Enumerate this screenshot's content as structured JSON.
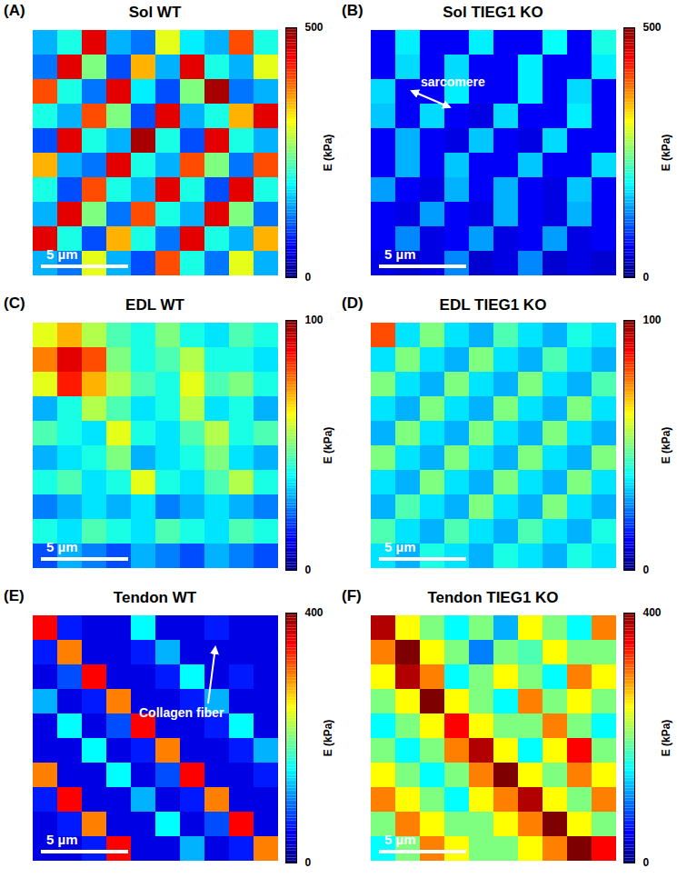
{
  "chart_data": [
    {
      "type": "heatmap",
      "panel": "(A)",
      "title": "Sol WT",
      "scale_bar": "5 µm",
      "colorbar": {
        "range": [
          0,
          500
        ],
        "ticks": [
          0,
          500
        ],
        "label": "E (kPa)"
      },
      "cells": [
        [
          150,
          200,
          450,
          150,
          120,
          300,
          180,
          150,
          400,
          200
        ],
        [
          120,
          450,
          250,
          100,
          350,
          150,
          450,
          200,
          150,
          300
        ],
        [
          400,
          200,
          120,
          450,
          180,
          100,
          250,
          480,
          120,
          150
        ],
        [
          200,
          150,
          400,
          250,
          100,
          450,
          150,
          200,
          350,
          450
        ],
        [
          100,
          450,
          200,
          150,
          480,
          200,
          100,
          450,
          200,
          150
        ],
        [
          350,
          150,
          120,
          450,
          200,
          150,
          400,
          250,
          120,
          400
        ],
        [
          200,
          100,
          400,
          200,
          150,
          450,
          200,
          100,
          450,
          200
        ],
        [
          150,
          450,
          250,
          120,
          400,
          200,
          150,
          450,
          250,
          120
        ],
        [
          450,
          200,
          100,
          350,
          200,
          120,
          450,
          200,
          150,
          350
        ],
        [
          150,
          120,
          300,
          150,
          100,
          400,
          200,
          120,
          300,
          150
        ]
      ]
    },
    {
      "type": "heatmap",
      "panel": "(B)",
      "title": "Sol TIEG1 KO",
      "scale_bar": "5 µm",
      "annotation": "sarcomere",
      "colorbar": {
        "range": [
          0,
          500
        ],
        "ticks": [
          0,
          500
        ],
        "label": "E (kPa)"
      },
      "cells": [
        [
          60,
          180,
          60,
          60,
          180,
          60,
          60,
          190,
          60,
          200
        ],
        [
          60,
          170,
          60,
          170,
          60,
          60,
          180,
          60,
          60,
          180
        ],
        [
          170,
          60,
          60,
          180,
          60,
          60,
          180,
          60,
          170,
          60
        ],
        [
          160,
          60,
          170,
          60,
          50,
          170,
          60,
          60,
          180,
          60
        ],
        [
          60,
          150,
          60,
          50,
          160,
          60,
          50,
          170,
          60,
          60
        ],
        [
          60,
          150,
          60,
          160,
          60,
          60,
          160,
          60,
          60,
          170
        ],
        [
          140,
          60,
          50,
          150,
          60,
          150,
          60,
          50,
          160,
          60
        ],
        [
          60,
          50,
          140,
          60,
          50,
          150,
          60,
          50,
          150,
          60
        ],
        [
          60,
          130,
          50,
          60,
          140,
          50,
          60,
          140,
          50,
          60
        ],
        [
          50,
          40,
          50,
          130,
          40,
          50,
          130,
          40,
          50,
          40
        ]
      ]
    },
    {
      "type": "heatmap",
      "panel": "(C)",
      "title": "EDL WT",
      "scale_bar": "5 µm",
      "colorbar": {
        "range": [
          0,
          100
        ],
        "ticks": [
          0,
          100
        ],
        "label": "E (kPa)"
      },
      "cells": [
        [
          60,
          70,
          55,
          45,
          40,
          50,
          40,
          35,
          45,
          40
        ],
        [
          75,
          90,
          80,
          50,
          40,
          45,
          55,
          40,
          40,
          35
        ],
        [
          60,
          85,
          70,
          55,
          45,
          40,
          60,
          45,
          50,
          40
        ],
        [
          30,
          40,
          55,
          45,
          35,
          40,
          55,
          35,
          40,
          30
        ],
        [
          45,
          40,
          35,
          60,
          40,
          35,
          45,
          55,
          40,
          45
        ],
        [
          30,
          35,
          40,
          50,
          30,
          35,
          40,
          50,
          35,
          30
        ],
        [
          40,
          45,
          35,
          40,
          60,
          40,
          35,
          45,
          55,
          40
        ],
        [
          25,
          30,
          35,
          30,
          35,
          25,
          30,
          35,
          30,
          25
        ],
        [
          40,
          35,
          45,
          40,
          35,
          45,
          40,
          35,
          45,
          40
        ],
        [
          20,
          30,
          25,
          20,
          30,
          25,
          20,
          30,
          25,
          20
        ]
      ]
    },
    {
      "type": "heatmap",
      "panel": "(D)",
      "title": "EDL TIEG1 KO",
      "scale_bar": "5 µm",
      "colorbar": {
        "range": [
          0,
          100
        ],
        "ticks": [
          0,
          100
        ],
        "label": "E (kPa)"
      },
      "cells": [
        [
          80,
          35,
          50,
          35,
          30,
          45,
          35,
          30,
          40,
          35
        ],
        [
          35,
          50,
          35,
          30,
          50,
          35,
          30,
          45,
          35,
          30
        ],
        [
          50,
          35,
          30,
          50,
          35,
          30,
          50,
          35,
          30,
          45
        ],
        [
          35,
          30,
          50,
          35,
          30,
          50,
          35,
          30,
          50,
          35
        ],
        [
          30,
          50,
          35,
          30,
          50,
          35,
          30,
          50,
          35,
          30
        ],
        [
          50,
          35,
          30,
          50,
          35,
          30,
          50,
          35,
          30,
          50
        ],
        [
          35,
          30,
          50,
          35,
          30,
          50,
          35,
          30,
          50,
          35
        ],
        [
          30,
          45,
          35,
          30,
          50,
          35,
          30,
          50,
          35,
          30
        ],
        [
          45,
          35,
          30,
          45,
          35,
          30,
          45,
          35,
          30,
          40
        ],
        [
          35,
          30,
          40,
          35,
          30,
          40,
          35,
          30,
          40,
          35
        ]
      ]
    },
    {
      "type": "heatmap",
      "panel": "(E)",
      "title": "Tendon WT",
      "scale_bar": "5 µm",
      "annotation": "Collagen fiber",
      "colorbar": {
        "range": [
          0,
          400
        ],
        "ticks": [
          0,
          400
        ],
        "label": "E (kPa)"
      },
      "cells": [
        [
          350,
          60,
          40,
          40,
          150,
          40,
          40,
          60,
          40,
          40
        ],
        [
          60,
          300,
          40,
          40,
          60,
          120,
          40,
          40,
          40,
          40
        ],
        [
          40,
          80,
          350,
          40,
          40,
          60,
          150,
          40,
          60,
          40
        ],
        [
          120,
          40,
          60,
          300,
          40,
          40,
          60,
          120,
          40,
          40
        ],
        [
          40,
          150,
          40,
          80,
          350,
          40,
          40,
          60,
          150,
          40
        ],
        [
          40,
          40,
          150,
          40,
          60,
          300,
          40,
          40,
          60,
          120
        ],
        [
          300,
          40,
          40,
          150,
          40,
          80,
          350,
          40,
          40,
          60
        ],
        [
          60,
          350,
          40,
          40,
          120,
          40,
          60,
          300,
          40,
          40
        ],
        [
          40,
          60,
          300,
          40,
          40,
          150,
          40,
          80,
          350,
          40
        ],
        [
          40,
          40,
          60,
          350,
          40,
          40,
          120,
          40,
          60,
          300
        ]
      ]
    },
    {
      "type": "heatmap",
      "panel": "(F)",
      "title": "Tendon TIEG1 KO",
      "scale_bar": "5 µm",
      "colorbar": {
        "range": [
          0,
          400
        ],
        "ticks": [
          0,
          400
        ],
        "label": "E (kPa)"
      },
      "cells": [
        [
          380,
          250,
          200,
          150,
          200,
          120,
          250,
          200,
          150,
          300
        ],
        [
          300,
          400,
          250,
          200,
          100,
          200,
          180,
          250,
          200,
          200
        ],
        [
          250,
          380,
          300,
          150,
          200,
          250,
          200,
          150,
          300,
          250
        ],
        [
          200,
          250,
          400,
          250,
          200,
          150,
          300,
          200,
          250,
          200
        ],
        [
          150,
          200,
          250,
          350,
          250,
          200,
          200,
          300,
          200,
          150
        ],
        [
          200,
          150,
          200,
          300,
          380,
          250,
          150,
          250,
          350,
          200
        ],
        [
          250,
          200,
          150,
          200,
          300,
          400,
          250,
          200,
          300,
          250
        ],
        [
          300,
          250,
          200,
          150,
          250,
          300,
          380,
          250,
          200,
          300
        ],
        [
          200,
          300,
          250,
          200,
          200,
          250,
          300,
          400,
          250,
          200
        ],
        [
          150,
          200,
          300,
          250,
          200,
          200,
          250,
          300,
          400,
          350
        ]
      ]
    }
  ]
}
